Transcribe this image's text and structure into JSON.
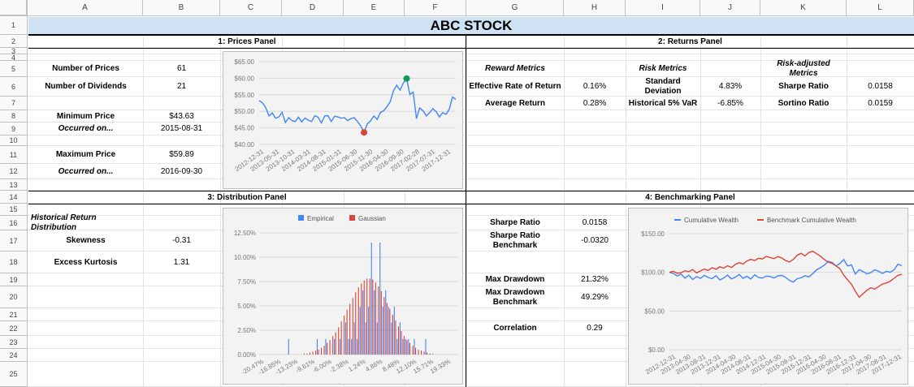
{
  "sheet": {
    "columns": [
      "A",
      "B",
      "C",
      "D",
      "E",
      "F",
      "G",
      "H",
      "I",
      "J",
      "K",
      "L"
    ],
    "rows": [
      "1",
      "2",
      "3",
      "4",
      "5",
      "6",
      "7",
      "8",
      "9",
      "10",
      "11",
      "12",
      "13",
      "14",
      "15",
      "16",
      "17",
      "18",
      "19",
      "20",
      "21",
      "22",
      "23",
      "24",
      "25"
    ]
  },
  "title": "ABC STOCK",
  "panels": {
    "prices": "1: Prices Panel",
    "returns": "2: Returns Panel",
    "distribution": "3: Distribution Panel",
    "benchmarking": "4: Benchmarking Panel"
  },
  "prices_panel": {
    "num_prices_label": "Number of Prices",
    "num_prices": "61",
    "num_dividends_label": "Number of Dividends",
    "num_dividends": "21",
    "min_price_label": "Minimum Price",
    "min_price": "$43.63",
    "min_date_label": "Occurred on...",
    "min_date": "2015-08-31",
    "max_price_label": "Maximum Price",
    "max_price": "$59.89",
    "max_date_label": "Occurred on...",
    "max_date": "2016-09-30"
  },
  "returns_panel": {
    "reward_header": "Reward Metrics",
    "risk_header": "Risk Metrics",
    "riskadj_header": "Risk-adjusted Metrics",
    "eff_rate_label": "Effective Rate of Return",
    "eff_rate": "0.16%",
    "avg_return_label": "Average Return",
    "avg_return": "0.28%",
    "std_label": "Standard Deviation",
    "std": "4.83%",
    "var_label": "Historical 5% VaR",
    "var": "-6.85%",
    "sharpe_label": "Sharpe Ratio",
    "sharpe": "0.0158",
    "sortino_label": "Sortino Ratio",
    "sortino": "0.0159"
  },
  "distribution_panel": {
    "header": "Historical Return Distribution",
    "skew_label": "Skewness",
    "skew": "-0.31",
    "kurt_label": "Excess Kurtosis",
    "kurt": "1.31"
  },
  "benchmarking_panel": {
    "sharpe_label": "Sharpe Ratio",
    "sharpe": "0.0158",
    "sharpe_bench_label": "Sharpe Ratio Benchmark",
    "sharpe_bench": "-0.0320",
    "mdd_label": "Max Drawdown",
    "mdd": "21.32%",
    "mdd_bench_label": "Max Drawdown Benchmark",
    "mdd_bench": "49.29%",
    "corr_label": "Correlation",
    "corr": "0.29"
  },
  "colors": {
    "blue": "#4285f4",
    "red": "#db4437",
    "green": "#0f9d58",
    "title_band": "#cfe2f3"
  },
  "chart_data": [
    {
      "type": "line",
      "name": "prices",
      "y_ticks": [
        "$65.00",
        "$60.00",
        "$55.00",
        "$50.00",
        "$45.00",
        "$40.00"
      ],
      "ylim": [
        40,
        65
      ],
      "x_ticks": [
        "2012-12-31",
        "2013-05-31",
        "2013-10-31",
        "2014-03-31",
        "2014-08-31",
        "2015-01-31",
        "2015-06-30",
        "2015-11-30",
        "2016-04-30",
        "2016-09-30",
        "2017-02-28",
        "2017-07-31",
        "2017-12-31"
      ],
      "values": [
        53.2,
        52.6,
        51.1,
        48.6,
        49.5,
        47.9,
        48.3,
        49.7,
        46.6,
        48.1,
        47.2,
        46.9,
        48.2,
        46.8,
        48.0,
        47.3,
        46.9,
        48.7,
        48.2,
        46.5,
        48.6,
        48.7,
        46.9,
        48.5,
        48.3,
        47.9,
        48.1,
        47.2,
        47.8,
        48.1,
        46.9,
        45.6,
        43.63,
        46.2,
        47.1,
        48.6,
        47.5,
        49.6,
        50.2,
        51.4,
        52.9,
        56.3,
        57.9,
        56.4,
        58.6,
        59.89,
        55.1,
        55.8,
        47.8,
        51.0,
        50.2,
        48.6,
        49.5,
        50.8,
        49.9,
        48.3,
        49.6,
        49.1,
        50.6,
        54.3,
        53.6
      ],
      "min_point": {
        "index": 32,
        "value": 43.63
      },
      "max_point": {
        "index": 45,
        "value": 59.89
      }
    },
    {
      "type": "bar",
      "name": "distribution",
      "legend": [
        "Empirical",
        "Gaussian"
      ],
      "y_ticks": [
        "12.50%",
        "10.00%",
        "7.50%",
        "5.00%",
        "2.50%",
        "0.00%"
      ],
      "ylim": [
        0,
        12.5
      ],
      "x_ticks": [
        "-20.47%",
        "-16.85%",
        "-13.23%",
        "-9.61%",
        "-6.00%",
        "-2.38%",
        "1.24%",
        "4.86%",
        "8.48%",
        "12.10%",
        "15.71%",
        "19.33%"
      ],
      "series": [
        {
          "name": "Empirical",
          "values": [
            0,
            0,
            0,
            0,
            0,
            0,
            0,
            0,
            0,
            0,
            1.6,
            0,
            0,
            0,
            0,
            0,
            0,
            0,
            0,
            0,
            1.6,
            0,
            0,
            1.6,
            0,
            0,
            1.6,
            0,
            1.6,
            0,
            3.3,
            1.6,
            1.6,
            3.3,
            1.6,
            4.9,
            6.6,
            3.3,
            4.9,
            11.5,
            6.6,
            3.3,
            11.5,
            4.9,
            6.6,
            4.9,
            3.3,
            4.9,
            1.6,
            3.3,
            1.6,
            1.6,
            1.6,
            0,
            1.6,
            0,
            0,
            0,
            1.6,
            0,
            0,
            0,
            0,
            0,
            0,
            0,
            0,
            0,
            0,
            0
          ]
        },
        {
          "name": "Gaussian",
          "values": [
            0,
            0,
            0,
            0,
            0,
            0,
            0,
            0,
            0,
            0,
            0,
            0,
            0,
            0,
            0,
            0.1,
            0.1,
            0.2,
            0.3,
            0.4,
            0.5,
            0.7,
            0.9,
            1.2,
            1.5,
            1.9,
            2.3,
            2.8,
            3.4,
            4.0,
            4.6,
            5.2,
            5.8,
            6.4,
            6.9,
            7.3,
            7.6,
            7.8,
            7.8,
            7.7,
            7.4,
            7.0,
            6.5,
            5.9,
            5.3,
            4.7,
            4.1,
            3.5,
            2.9,
            2.4,
            1.9,
            1.5,
            1.2,
            0.9,
            0.7,
            0.5,
            0.4,
            0.3,
            0.2,
            0.1,
            0.1,
            0,
            0,
            0,
            0,
            0,
            0,
            0,
            0,
            0
          ]
        }
      ]
    },
    {
      "type": "line",
      "name": "benchmark",
      "y_ticks": [
        "$150.00",
        "$100.00",
        "$50.00",
        "$0.00"
      ],
      "ylim": [
        0,
        150
      ],
      "x_ticks": [
        "2012-12-31",
        "2013-04-30",
        "2013-08-31",
        "2013-12-31",
        "2014-04-30",
        "2014-08-31",
        "2014-12-31",
        "2015-04-30",
        "2015-08-31",
        "2015-12-31",
        "2016-04-30",
        "2016-08-31",
        "2016-12-31",
        "2017-04-30",
        "2017-08-31",
        "2017-12-31"
      ],
      "series": [
        {
          "name": "Cumulative Wealth",
          "color": "#4285f4",
          "values": [
            100,
            98.6,
            95.2,
            97.8,
            92.4,
            96.3,
            90.8,
            94.5,
            92.2,
            96.1,
            93.4,
            91.8,
            95.7,
            90.2,
            92.6,
            96.4,
            91.5,
            93.8,
            97.2,
            92.3,
            94.9,
            91.4,
            96.8,
            93.2,
            92.6,
            95.1,
            94.6,
            92.7,
            95.3,
            96.1,
            93.6,
            89.5,
            87.4,
            91.8,
            92.9,
            95.6,
            94.1,
            98.3,
            103.2,
            106.1,
            109.4,
            114.2,
            112.8,
            108.4,
            111.3,
            116.5,
            108.2,
            109.6,
            97.8,
            103.4,
            100.9,
            98.1,
            99.7,
            103.4,
            101.3,
            98.6,
            101.2,
            100.1,
            103.4,
            110.5,
            108.7
          ]
        },
        {
          "name": "Benchmark Cumulative Wealth",
          "color": "#db4437",
          "values": [
            100,
            101.3,
            98.7,
            99.4,
            102.1,
            100.8,
            103.6,
            99.2,
            101.8,
            104.3,
            102.5,
            106.1,
            103.9,
            107.2,
            105.4,
            108.6,
            106.3,
            110.2,
            112.4,
            110.8,
            114.6,
            116.9,
            115.3,
            118.1,
            117.4,
            120.6,
            119.2,
            117.8,
            120.3,
            118.6,
            115.2,
            113.4,
            116.8,
            122.1,
            124.6,
            121.3,
            125.7,
            127.2,
            124.1,
            120.8,
            116.5,
            113.2,
            111.6,
            108.3,
            104.9,
            96.4,
            90.1,
            84.6,
            75.3,
            67.8,
            72.4,
            76.9,
            80.1,
            78.3,
            81.6,
            84.9,
            86.2,
            88.5,
            92.3,
            96.1,
            97.4
          ]
        }
      ]
    }
  ]
}
